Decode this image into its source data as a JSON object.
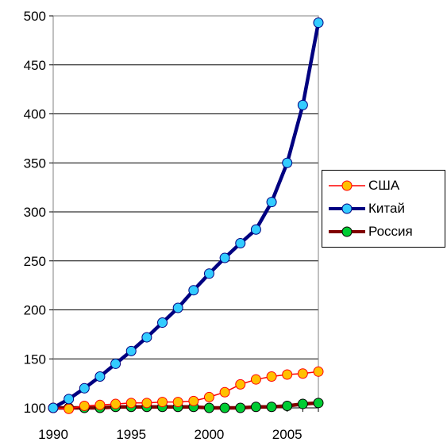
{
  "chart_data": {
    "type": "line",
    "title": "",
    "xlabel": "",
    "ylabel": "",
    "x": [
      1990,
      1991,
      1992,
      1993,
      1994,
      1995,
      1996,
      1997,
      1998,
      1999,
      2000,
      2001,
      2002,
      2003,
      2004,
      2005,
      2006,
      2007
    ],
    "xlim": [
      1990,
      2007
    ],
    "ylim": [
      100,
      500
    ],
    "xticks": [
      "1990",
      "1995",
      "2000",
      "2005"
    ],
    "yticks": [
      "100",
      "150",
      "200",
      "250",
      "300",
      "350",
      "400",
      "450",
      "500"
    ],
    "grid": "horizontal",
    "legend_position": "right",
    "series": [
      {
        "name": "США",
        "line_color": "#ff0000",
        "marker_color": "#ffc000",
        "values": [
          100,
          99,
          102,
          103,
          104,
          105,
          105,
          106,
          106,
          107,
          111,
          116,
          124,
          129,
          132,
          134,
          135,
          137
        ]
      },
      {
        "name": "Китай",
        "line_color": "#000080",
        "marker_color": "#33ccff",
        "values": [
          100,
          109,
          120,
          132,
          145,
          158,
          172,
          187,
          202,
          220,
          237,
          253,
          268,
          282,
          310,
          350,
          409,
          493
        ]
      },
      {
        "name": "Россия",
        "line_color": "#800000",
        "marker_color": "#00cc33",
        "values": [
          100,
          100,
          100,
          100,
          101,
          101,
          101,
          101,
          101,
          101,
          100,
          100,
          100,
          101,
          101,
          102,
          104,
          105
        ]
      }
    ]
  }
}
